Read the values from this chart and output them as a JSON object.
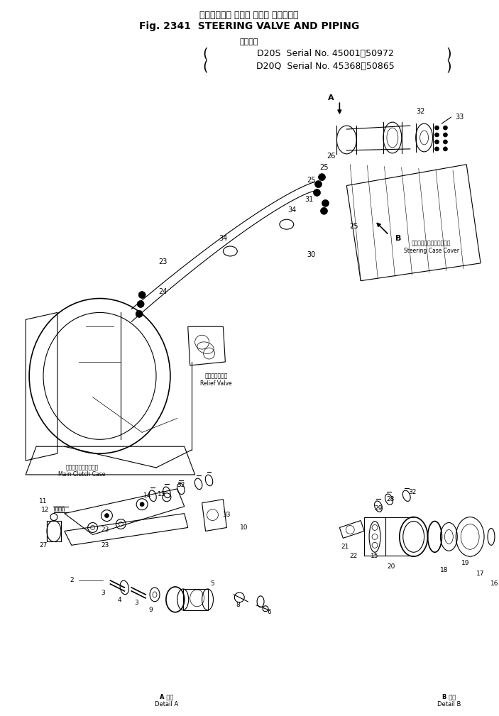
{
  "title_jp": "ステアリング バルブ および パイピング",
  "title_en": "Fig. 2341  STEERING VALVE AND PIPING",
  "applicability_jp": "適用号機",
  "line1": "D20S  Serial No. 45001～50972",
  "line2": "D20Q  Serial No. 45368～50865",
  "bg_color": "#ffffff",
  "lc": "#000000",
  "fig_width": 7.03,
  "fig_height": 10.09,
  "dpi": 100
}
